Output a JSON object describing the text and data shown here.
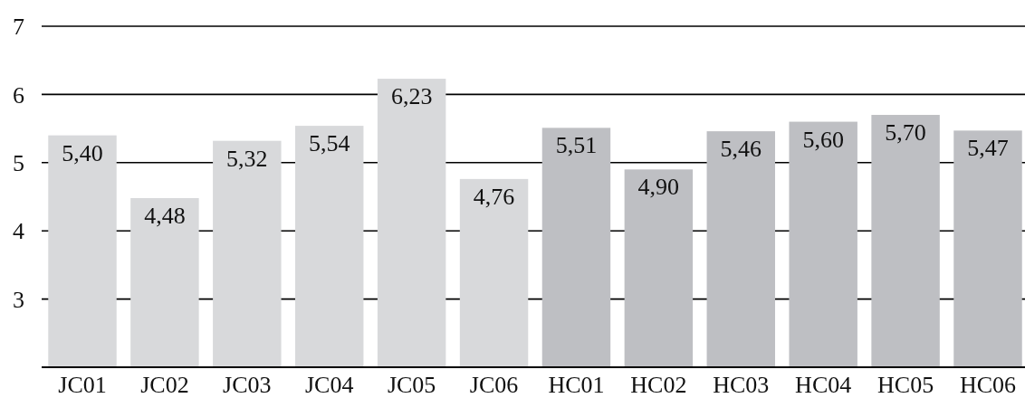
{
  "chart_data": {
    "type": "bar",
    "categories": [
      "JC01",
      "JC02",
      "JC03",
      "JC04",
      "JC05",
      "JC06",
      "HC01",
      "HC02",
      "HC03",
      "HC04",
      "HC05",
      "HC06"
    ],
    "values": [
      5.4,
      4.48,
      5.32,
      5.54,
      6.23,
      4.76,
      5.51,
      4.9,
      5.46,
      5.6,
      5.7,
      5.47
    ],
    "colors": [
      "#d8d9db",
      "#d8d9db",
      "#d8d9db",
      "#d8d9db",
      "#d8d9db",
      "#d8d9db",
      "#bebfc3",
      "#bebfc3",
      "#bebfc3",
      "#bebfc3",
      "#bebfc3",
      "#bebfc3"
    ],
    "value_labels": [
      "5,40",
      "4,48",
      "5,32",
      "5,54",
      "6,23",
      "4,76",
      "5,51",
      "4,90",
      "5,46",
      "5,60",
      "5,70",
      "5,47"
    ],
    "ylim": [
      2,
      7
    ],
    "yticks": [
      3,
      4,
      5,
      6,
      7
    ],
    "grid": "y"
  }
}
